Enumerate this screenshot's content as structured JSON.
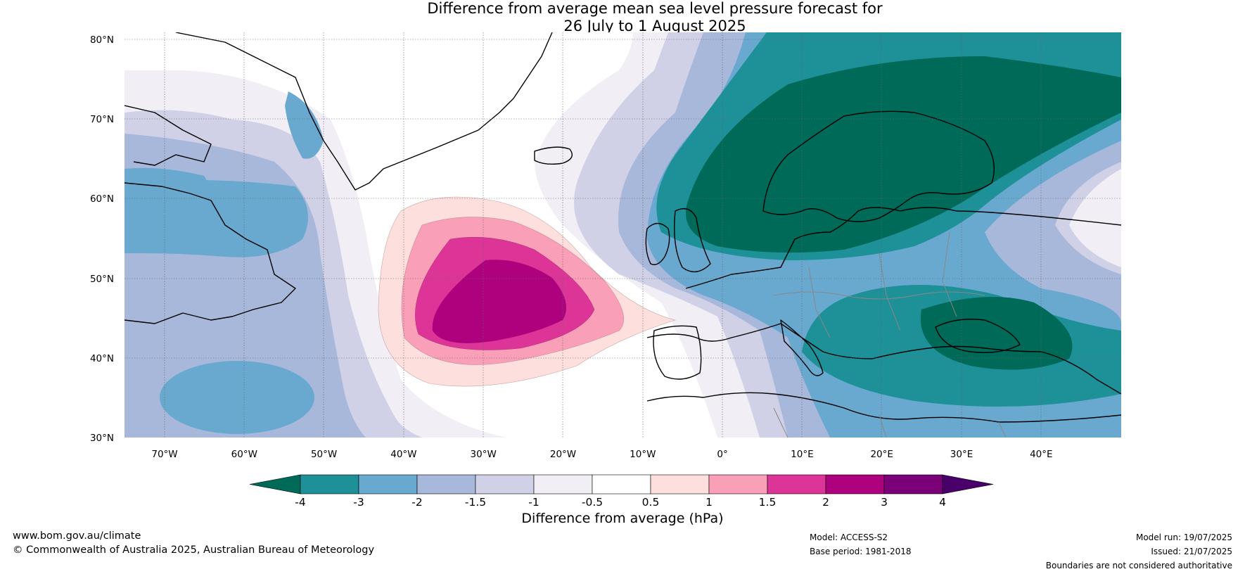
{
  "title": {
    "line1": "Difference from average mean sea level pressure forecast for",
    "line2": "26 July to 1 August 2025"
  },
  "map": {
    "lat_labels": [
      "80°N",
      "70°N",
      "60°N",
      "50°N",
      "40°N",
      "30°N"
    ],
    "lon_labels": [
      "70°W",
      "60°W",
      "50°W",
      "40°W",
      "30°W",
      "20°W",
      "10°W",
      "0°",
      "10°E",
      "20°E",
      "30°E",
      "40°E"
    ],
    "lat_range": [
      30,
      81
    ],
    "lon_range": [
      -75,
      50
    ],
    "grid": true
  },
  "colorbar": {
    "title": "Difference from average (hPa)",
    "tick_labels": [
      "-4",
      "-3",
      "-2",
      "-1.5",
      "-1",
      "-0.5",
      "0.5",
      "1",
      "1.5",
      "2",
      "3",
      "4"
    ],
    "colors": [
      "#006a58",
      "#1d9098",
      "#69a9d0",
      "#a8b8da",
      "#d0d1e6",
      "#f1eef6",
      "#ffffff",
      "#fde0dd",
      "#f99fb8",
      "#dd3497",
      "#ae017e",
      "#7a0177",
      "#4a006a"
    ]
  },
  "footer": {
    "website": "www.bom.gov.au/climate",
    "copyright": "© Commonwealth of Australia 2025, Australian Bureau of Meteorology",
    "model": "Model: ACCESS-S2",
    "base_period": "Base period: 1981-2018",
    "model_run": "Model run: 19/07/2025",
    "issued": "Issued: 21/07/2025",
    "disclaimer": "Boundaries are not considered authoritative"
  }
}
